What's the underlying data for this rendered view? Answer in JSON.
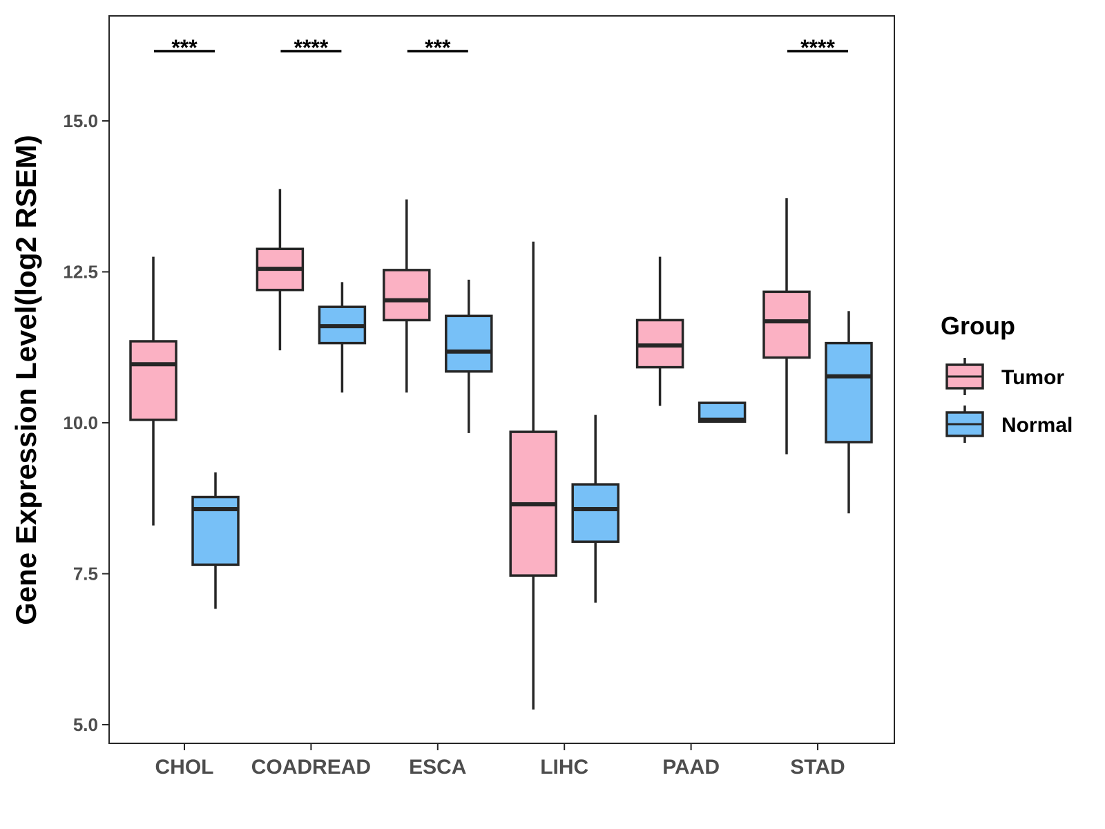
{
  "chart_data": {
    "type": "boxplot",
    "title": "",
    "xlabel": "",
    "ylabel": "Gene Expression Level(log2 RSEM)",
    "ylim": [
      4.7,
      16.8
    ],
    "yticks": [
      5.0,
      7.5,
      10.0,
      12.5,
      15.0
    ],
    "ytick_labels": [
      "5.0",
      "7.5",
      "10.0",
      "12.5",
      "15.0"
    ],
    "grid": false,
    "categories": [
      "CHOL",
      "COADREAD",
      "ESCA",
      "LIHC",
      "PAAD",
      "STAD"
    ],
    "series": [
      {
        "name": "Tumor",
        "color": "#fbb1c3",
        "boxes": [
          {
            "min": 8.3,
            "q1": 10.05,
            "median": 10.97,
            "q3": 11.35,
            "max": 12.75
          },
          {
            "min": 11.2,
            "q1": 12.2,
            "median": 12.55,
            "q3": 12.88,
            "max": 13.87
          },
          {
            "min": 10.5,
            "q1": 11.7,
            "median": 12.03,
            "q3": 12.53,
            "max": 13.7
          },
          {
            "min": 5.25,
            "q1": 7.47,
            "median": 8.65,
            "q3": 9.85,
            "max": 13.0
          },
          {
            "min": 10.28,
            "q1": 10.92,
            "median": 11.28,
            "q3": 11.7,
            "max": 12.75
          },
          {
            "min": 9.48,
            "q1": 11.08,
            "median": 11.68,
            "q3": 12.17,
            "max": 13.72
          }
        ]
      },
      {
        "name": "Normal",
        "color": "#77c0f7",
        "boxes": [
          {
            "min": 6.92,
            "q1": 7.65,
            "median": 8.57,
            "q3": 8.77,
            "max": 9.18
          },
          {
            "min": 10.5,
            "q1": 11.32,
            "median": 11.6,
            "q3": 11.92,
            "max": 12.33
          },
          {
            "min": 9.83,
            "q1": 10.85,
            "median": 11.18,
            "q3": 11.77,
            "max": 12.37
          },
          {
            "min": 7.02,
            "q1": 8.03,
            "median": 8.57,
            "q3": 8.98,
            "max": 10.13
          },
          {
            "min": 10.02,
            "q1": 10.02,
            "median": 10.05,
            "q3": 10.33,
            "max": 10.33
          },
          {
            "min": 8.5,
            "q1": 9.68,
            "median": 10.77,
            "q3": 11.32,
            "max": 11.85
          }
        ]
      }
    ],
    "significance": [
      {
        "category": "CHOL",
        "label": "***"
      },
      {
        "category": "COADREAD",
        "label": "****"
      },
      {
        "category": "ESCA",
        "label": "***"
      },
      {
        "category": "STAD",
        "label": "****"
      }
    ],
    "legend": {
      "title": "Group",
      "position": "right",
      "items": [
        {
          "label": "Tumor",
          "color": "#fbb1c3"
        },
        {
          "label": "Normal",
          "color": "#77c0f7"
        }
      ]
    },
    "colors": {
      "stroke": "#262626",
      "axis_text": "#4d4d4d",
      "frame": "#262626"
    }
  }
}
